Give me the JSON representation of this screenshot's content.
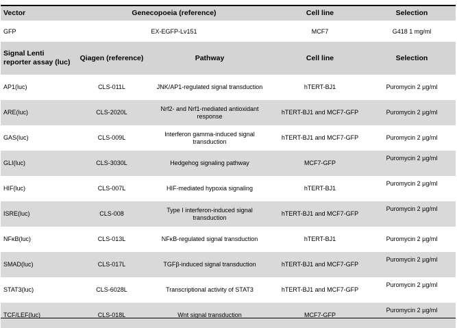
{
  "vector_header": {
    "vector": "Vector",
    "reference": "Genecopoeia (reference)",
    "cell_line": "Cell line",
    "selection": "Selection"
  },
  "vector_row": {
    "vector": "GFP",
    "reference": "EX-EGFP-Lv151",
    "cell_line": "MCF7",
    "selection": "G418 1 mg/ml"
  },
  "assay_header": {
    "assay": "Signal Lenti reporter assay (luc)",
    "reference": "Qiagen (reference)",
    "pathway": "Pathway",
    "cell_line": "Cell line",
    "selection": "Selection"
  },
  "rows": [
    {
      "assay": "AP1(luc)",
      "reference": "CLS-011L",
      "pathway": "JNK/AP1-regulated signal transduction",
      "cell_line": "hTERT-BJ1",
      "selection": "Puromycin 2 µg/ml"
    },
    {
      "assay": "ARE(luc)",
      "reference": "CLS-2020L",
      "pathway": "Nrf2- and Nrf1-mediated antioxidant response",
      "cell_line": "hTERT-BJ1 and MCF7-GFP",
      "selection": "Puromycin 2 µg/ml"
    },
    {
      "assay": "GAS(luc)",
      "reference": "CLS-009L",
      "pathway": "Interferon gamma-induced signal transduction",
      "cell_line": "hTERT-BJ1 and MCF7-GFP",
      "selection": "Puromycin 2 µg/ml"
    },
    {
      "assay": "GLI(luc)",
      "reference": "CLS-3030L",
      "pathway": "Hedgehog signaling pathway",
      "cell_line": "MCF7-GFP",
      "selection": "Puromycin 2 µg/ml"
    },
    {
      "assay": "HIF(luc)",
      "reference": "CLS-007L",
      "pathway": "HIF-mediated hypoxia signaling",
      "cell_line": "hTERT-BJ1",
      "selection": "Puromycin 2 µg/ml"
    },
    {
      "assay": "ISRE(luc)",
      "reference": "CLS-008",
      "pathway": "Type I interferon-induced signal transduction",
      "cell_line": "hTERT-BJ1 and MCF7-GFP",
      "selection": "Puromycin 2 µg/ml"
    },
    {
      "assay": "NFκB(luc)",
      "reference": "CLS-013L",
      "pathway": "NFκB-regulated signal transduction",
      "cell_line": "hTERT-BJ1",
      "selection": "Puromycin 2 µg/ml"
    },
    {
      "assay": "SMAD(luc)",
      "reference": "CLS-017L",
      "pathway": "TGFβ-induced signal transduction",
      "cell_line": "hTERT-BJ1 and MCF7-GFP",
      "selection": "Puromycin 2 µg/ml"
    },
    {
      "assay": "STAT3(luc)",
      "reference": "CLS-6028L",
      "pathway": "Transcriptional activity of STAT3",
      "cell_line": "hTERT-BJ1 and MCF7-GFP",
      "selection": "Puromycin 2 µg/ml"
    },
    {
      "assay": "TCF/LEF(luc)",
      "reference": "CLS-018L",
      "pathway": "Wnt signal transduction",
      "cell_line": "MCF7-GFP",
      "selection": "Puromycin 2 µg/ml"
    }
  ]
}
